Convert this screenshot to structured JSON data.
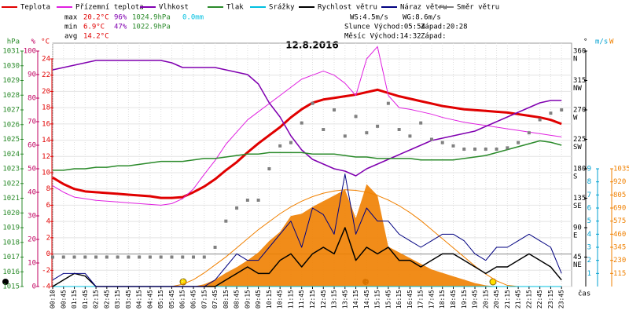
{
  "chart_data": {
    "type": "line",
    "title": "12.8.2016",
    "x_label": "čas",
    "categories": [
      "00:10",
      "00:45",
      "01:15",
      "01:45",
      "02:15",
      "02:45",
      "03:15",
      "03:45",
      "04:15",
      "04:45",
      "05:15",
      "05:45",
      "06:15",
      "06:45",
      "07:15",
      "07:45",
      "08:15",
      "08:45",
      "09:15",
      "09:45",
      "10:15",
      "10:45",
      "11:15",
      "11:45",
      "12:15",
      "12:45",
      "13:15",
      "13:45",
      "14:15",
      "14:45",
      "15:15",
      "15:45",
      "16:15",
      "16:45",
      "17:15",
      "17:45",
      "18:15",
      "18:45",
      "19:15",
      "19:45",
      "20:15",
      "20:45",
      "21:15",
      "21:45",
      "22:15",
      "22:45",
      "23:15",
      "23:45"
    ],
    "axes": [
      {
        "label": "hPa",
        "color": "#2a8a2a",
        "lim": [
          1015,
          1031
        ],
        "ticks": [
          1015,
          1016,
          1017,
          1018,
          1019,
          1020,
          1021,
          1022,
          1023,
          1024,
          1025,
          1026,
          1027,
          1028,
          1029,
          1030,
          1031
        ]
      },
      {
        "label": "%",
        "color": "#c00060",
        "lim": [
          0,
          100
        ],
        "ticks": [
          0,
          10,
          20,
          30,
          40,
          50,
          60,
          70,
          80,
          90,
          100
        ]
      },
      {
        "label": "°C",
        "color": "#e00000",
        "lim": [
          -4,
          24
        ],
        "ticks": [
          -4,
          -2,
          0,
          2,
          4,
          6,
          8,
          10,
          12,
          14,
          16,
          18,
          20,
          22,
          24
        ]
      },
      {
        "label": "°",
        "color": "#000000",
        "lim": [
          0,
          360
        ],
        "ticks": [
          45,
          90,
          135,
          180,
          225,
          270,
          315,
          360
        ],
        "tick_names": [
          "NE",
          "E",
          "SE",
          "S",
          "SW",
          "W",
          "NW",
          "N"
        ]
      },
      {
        "label": "m/s",
        "color": "#00a0d0",
        "lim": [
          0,
          9
        ],
        "ticks": [
          1,
          2,
          3,
          4,
          5,
          6,
          7,
          8,
          9
        ]
      },
      {
        "label": "W",
        "color": "#f08000",
        "lim": [
          0,
          1035
        ],
        "ticks": [
          115,
          230,
          345,
          460,
          575,
          690,
          805,
          920,
          1035
        ]
      }
    ],
    "grid": true,
    "series": [
      {
        "name": "Teplota",
        "color": "#e00000",
        "axis": 2,
        "width": 3,
        "values": [
          9.4,
          8.6,
          8.0,
          7.7,
          7.6,
          7.5,
          7.4,
          7.3,
          7.2,
          7.1,
          6.9,
          6.9,
          7.0,
          7.6,
          8.3,
          9.2,
          10.3,
          11.3,
          12.5,
          13.6,
          14.6,
          15.6,
          16.8,
          17.8,
          18.6,
          19.0,
          19.2,
          19.4,
          19.6,
          19.9,
          20.2,
          19.8,
          19.4,
          19.1,
          18.8,
          18.5,
          18.2,
          18.0,
          17.8,
          17.7,
          17.6,
          17.5,
          17.4,
          17.2,
          17.0,
          16.8,
          16.5,
          16.0
        ]
      },
      {
        "name": "Přízemní teplota",
        "color": "#e020e0",
        "axis": 2,
        "width": 1,
        "values": [
          8.4,
          7.6,
          7.0,
          6.8,
          6.6,
          6.5,
          6.4,
          6.3,
          6.2,
          6.1,
          6.0,
          6.2,
          6.8,
          8.0,
          9.8,
          11.5,
          13.5,
          15.0,
          16.5,
          17.5,
          18.5,
          19.5,
          20.5,
          21.5,
          22.0,
          22.5,
          22.0,
          21.0,
          19.5,
          24.0,
          25.5,
          19.5,
          18.0,
          17.8,
          17.5,
          17.2,
          16.8,
          16.5,
          16.2,
          16.0,
          15.8,
          15.6,
          15.4,
          15.2,
          15.0,
          14.8,
          14.6,
          14.4
        ]
      },
      {
        "name": "Vlhkost",
        "color": "#8000b0",
        "axis": 1,
        "width": 1.5,
        "values": [
          92,
          93,
          94,
          95,
          96,
          96,
          96,
          96,
          96,
          96,
          96,
          95,
          93,
          93,
          93,
          93,
          92,
          91,
          90,
          86,
          78,
          72,
          64,
          58,
          54,
          52,
          50,
          49,
          47,
          50,
          52,
          54,
          56,
          58,
          60,
          62,
          63,
          64,
          65,
          66,
          68,
          70,
          72,
          74,
          76,
          78,
          79,
          79
        ]
      },
      {
        "name": "Tlak",
        "color": "#2a8a2a",
        "axis": 0,
        "width": 1.5,
        "values": [
          1022.9,
          1022.9,
          1023.0,
          1023.0,
          1023.1,
          1023.1,
          1023.2,
          1023.2,
          1023.3,
          1023.4,
          1023.5,
          1023.5,
          1023.5,
          1023.6,
          1023.7,
          1023.7,
          1023.8,
          1023.9,
          1024.0,
          1024.0,
          1024.1,
          1024.1,
          1024.1,
          1024.1,
          1024.0,
          1024.0,
          1024.0,
          1023.9,
          1023.8,
          1023.8,
          1023.7,
          1023.7,
          1023.7,
          1023.7,
          1023.6,
          1023.6,
          1023.6,
          1023.6,
          1023.7,
          1023.8,
          1023.9,
          1024.1,
          1024.3,
          1024.5,
          1024.7,
          1024.9,
          1024.8,
          1024.6
        ]
      },
      {
        "name": "Srážky",
        "color": "#00c0e0",
        "axis": 4,
        "width": 1,
        "values": [
          0,
          0,
          0,
          0,
          0,
          0,
          0,
          0,
          0,
          0,
          0,
          0,
          0,
          0,
          0,
          0,
          0,
          0,
          0,
          0,
          0,
          0,
          0,
          0,
          0,
          0,
          0,
          0,
          0,
          0,
          0,
          0,
          0,
          0,
          0,
          0,
          0,
          0,
          0,
          0,
          0,
          0,
          0,
          0,
          0,
          0,
          0,
          0
        ]
      },
      {
        "name": "Rychlost větru",
        "color": "#000000",
        "axis": 4,
        "width": 1.5,
        "values": [
          0,
          0.5,
          1,
          0.8,
          0,
          0,
          0,
          0,
          0,
          0,
          0,
          0,
          0,
          0,
          0,
          0,
          0.5,
          1,
          1.5,
          1,
          1,
          2,
          2.5,
          1.5,
          2.5,
          3,
          2.5,
          4.5,
          2,
          3,
          2.5,
          3,
          2,
          2,
          1.5,
          2,
          2.5,
          2.5,
          2,
          1.5,
          1,
          1.5,
          1.5,
          2,
          2.5,
          2,
          1.5,
          0.5
        ]
      },
      {
        "name": "Náraz větru",
        "color": "#000080",
        "axis": 4,
        "width": 1,
        "values": [
          0.5,
          1,
          1,
          1,
          0,
          0,
          0,
          0,
          0,
          0,
          0,
          0,
          0,
          0,
          0,
          0.5,
          1.5,
          2.5,
          2,
          2,
          3,
          4,
          5,
          3,
          6,
          5.5,
          4,
          8.6,
          4,
          6,
          5,
          5,
          4,
          3.5,
          3,
          3.5,
          4,
          4,
          3.5,
          2.5,
          2,
          3,
          3,
          3.5,
          4,
          3.5,
          3,
          1
        ]
      },
      {
        "name": "Směr větru",
        "color": "#808080",
        "axis": 3,
        "style": "points",
        "values": [
          45,
          45,
          45,
          45,
          45,
          45,
          45,
          45,
          45,
          45,
          45,
          45,
          45,
          45,
          45,
          60,
          100,
          120,
          132,
          132,
          180,
          215,
          220,
          250,
          280,
          240,
          270,
          230,
          260,
          235,
          245,
          280,
          240,
          230,
          250,
          225,
          220,
          215,
          210,
          210,
          210,
          210,
          212,
          220,
          235,
          255,
          265,
          270
        ]
      }
    ],
    "radiation": {
      "color": "#f08000",
      "axis": 5,
      "values": [
        0,
        0,
        0,
        0,
        0,
        0,
        0,
        0,
        0,
        0,
        0,
        0,
        0,
        0,
        20,
        60,
        120,
        170,
        230,
        300,
        400,
        480,
        620,
        640,
        700,
        750,
        800,
        850,
        600,
        900,
        800,
        350,
        300,
        250,
        200,
        150,
        120,
        90,
        60,
        30,
        10,
        0,
        0,
        0,
        0,
        0,
        0,
        0
      ]
    },
    "sun_curve": {
      "color": "#f08000",
      "axis": 5,
      "values": [
        null,
        null,
        null,
        null,
        null,
        null,
        null,
        null,
        null,
        null,
        null,
        0,
        20,
        60,
        120,
        190,
        260,
        340,
        420,
        500,
        570,
        640,
        700,
        750,
        790,
        820,
        840,
        850,
        845,
        830,
        800,
        760,
        710,
        650,
        580,
        500,
        420,
        340,
        260,
        180,
        110,
        50,
        10,
        0,
        null,
        null,
        null,
        null
      ]
    },
    "stats": [
      {
        "label": "max",
        "values": [
          "20.2°C",
          "96%",
          "1024.9hPa",
          "0.0mm"
        ]
      },
      {
        "label": "min",
        "values": [
          "6.9°C",
          "47%",
          "1022.9hPa"
        ]
      },
      {
        "label": "avg",
        "values": [
          "14.2°C"
        ]
      }
    ],
    "info": [
      "WS:4.5m/s",
      "WG:8.6m/s",
      "Slunce Východ:05:54",
      "Západ:20:28",
      "Měsíc Východ:14:32",
      "Západ:"
    ]
  }
}
